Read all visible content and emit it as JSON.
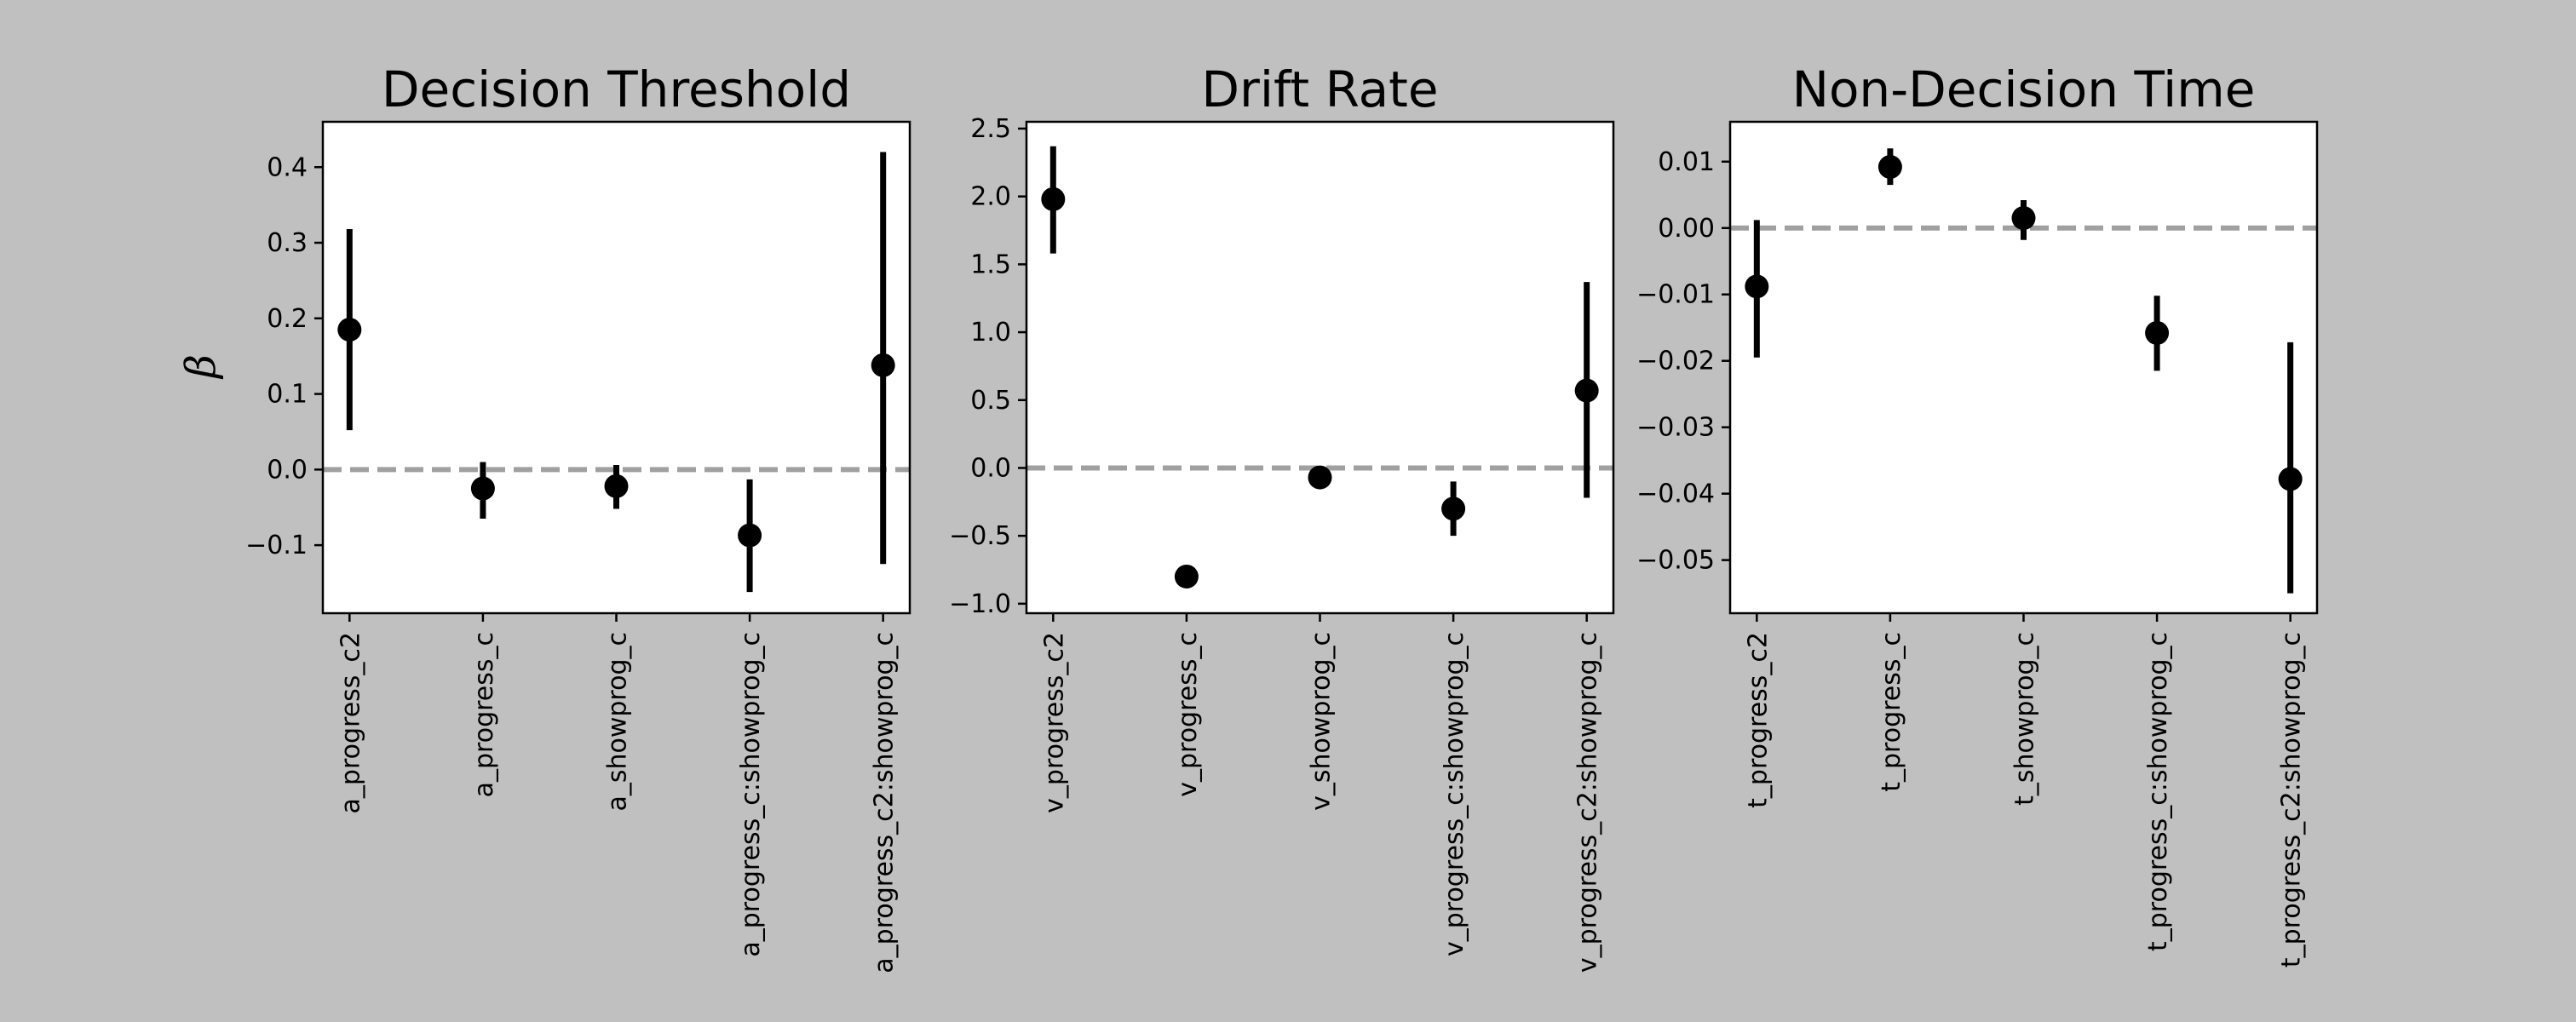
{
  "figure": {
    "ylabel": "β",
    "background": "#c0c0c0",
    "axes_background": "#ffffff",
    "marker_color": "#000000",
    "zero_line_color": "#a0a0a0"
  },
  "chart_data": [
    {
      "type": "scatter",
      "title": "Decision Threshold",
      "ylabel": "β",
      "ylim": [
        -0.19,
        0.46
      ],
      "yticks": [
        -0.1,
        0.0,
        0.1,
        0.2,
        0.3,
        0.4
      ],
      "ytick_labels": [
        "−0.1",
        "0.0",
        "0.1",
        "0.2",
        "0.3",
        "0.4"
      ],
      "reference_line": 0,
      "categories": [
        "a_progress_c2",
        "a_progress_c",
        "a_showprog_c",
        "a_progress_c:showprog_c",
        "a_progress_c2:showprog_c"
      ],
      "values": [
        0.185,
        -0.025,
        -0.022,
        -0.087,
        0.138
      ],
      "ci_low": [
        0.052,
        -0.065,
        -0.052,
        -0.162,
        -0.125
      ],
      "ci_high": [
        0.318,
        0.01,
        0.006,
        -0.013,
        0.42
      ]
    },
    {
      "type": "scatter",
      "title": "Drift Rate",
      "ylabel": "",
      "ylim": [
        -1.07,
        2.55
      ],
      "yticks": [
        -1.0,
        -0.5,
        0.0,
        0.5,
        1.0,
        1.5,
        2.0,
        2.5
      ],
      "ytick_labels": [
        "−1.0",
        "−0.5",
        "0.0",
        "0.5",
        "1.0",
        "1.5",
        "2.0",
        "2.5"
      ],
      "reference_line": 0,
      "categories": [
        "v_progress_c2",
        "v_progress_c",
        "v_showprog_c",
        "v_progress_c:showprog_c",
        "v_progress_c2:showprog_c"
      ],
      "values": [
        1.98,
        -0.8,
        -0.07,
        -0.3,
        0.57
      ],
      "ci_low": [
        1.58,
        -0.88,
        -0.12,
        -0.5,
        -0.22
      ],
      "ci_high": [
        2.37,
        -0.72,
        -0.02,
        -0.1,
        1.37
      ]
    },
    {
      "type": "scatter",
      "title": "Non-Decision Time",
      "ylabel": "",
      "ylim": [
        -0.058,
        0.016
      ],
      "yticks": [
        -0.05,
        -0.04,
        -0.03,
        -0.02,
        -0.01,
        0.0,
        0.01
      ],
      "ytick_labels": [
        "−0.05",
        "−0.04",
        "−0.03",
        "−0.02",
        "−0.01",
        "0.00",
        "0.01"
      ],
      "reference_line": 0,
      "categories": [
        "t_progress_c2",
        "t_progress_c",
        "t_showprog_c",
        "t_progress_c:showprog_c",
        "t_progress_c2:showprog_c"
      ],
      "values": [
        -0.0088,
        0.0092,
        0.0015,
        -0.0158,
        -0.0378
      ],
      "ci_low": [
        -0.0195,
        0.0065,
        -0.0018,
        -0.0215,
        -0.055
      ],
      "ci_high": [
        0.0012,
        0.012,
        0.0042,
        -0.0102,
        -0.0172
      ]
    }
  ]
}
